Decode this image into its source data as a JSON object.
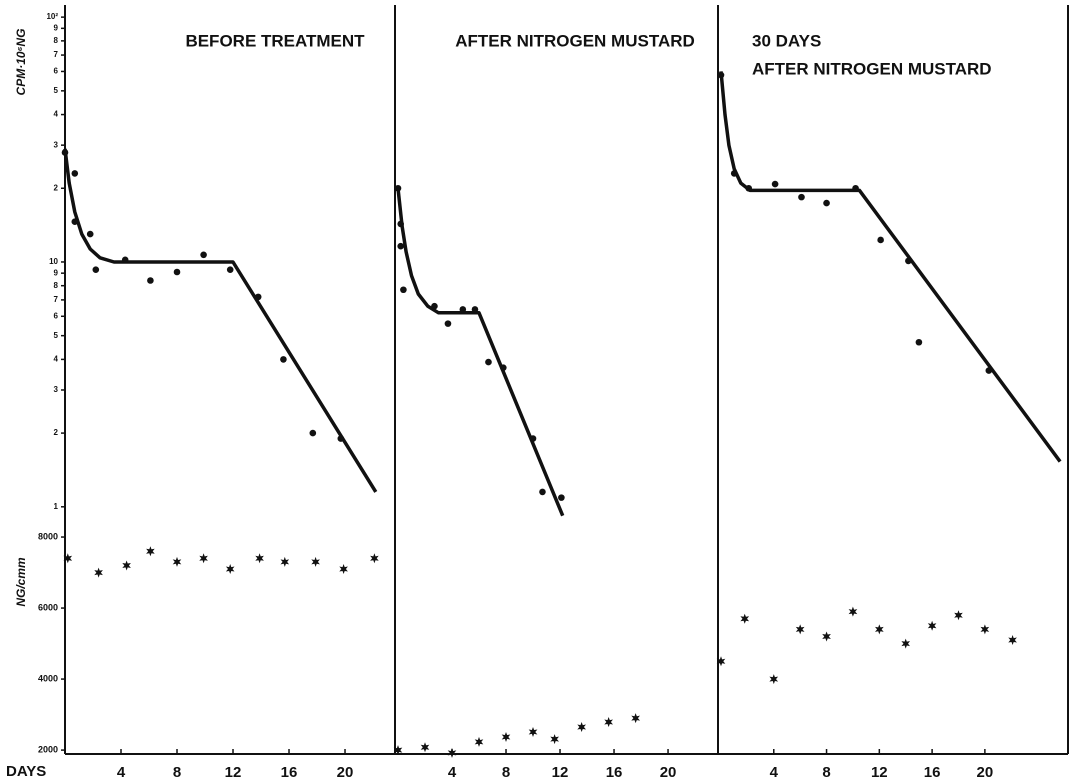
{
  "chart_data": [
    {
      "type": "scatter",
      "title": "BEFORE TREATMENT",
      "y_label": "CPM·10⁶NG",
      "log_y": true,
      "color": "#111",
      "x": [
        0,
        0.7,
        0.7,
        1.8,
        2.2,
        4.3,
        6.1,
        8,
        9.9,
        11.8,
        13.8,
        15.6,
        17.7,
        19.7
      ],
      "values": [
        28,
        23,
        14.6,
        13,
        9.3,
        10.2,
        8.4,
        9.1,
        10.7,
        9.3,
        7.2,
        4.0,
        2.0,
        1.9
      ],
      "fit": {
        "x": [
          0,
          0.3,
          0.7,
          1.2,
          1.8,
          2.5,
          3.5,
          12,
          22.2
        ],
        "values": [
          29,
          21,
          16,
          13,
          11.3,
          10.4,
          10,
          10,
          1.15
        ]
      },
      "xlim": [
        0,
        23.57
      ],
      "ylim": [
        0.9,
        110
      ],
      "yticks": [
        1,
        2,
        3,
        4,
        5,
        6,
        7,
        8,
        9,
        10,
        {
          "value": 20,
          "label": "2"
        },
        {
          "value": 30,
          "label": "3"
        },
        {
          "value": 40,
          "label": "4"
        },
        {
          "value": 50,
          "label": "5"
        },
        {
          "value": 60,
          "label": "6"
        },
        {
          "value": 70,
          "label": "7"
        },
        {
          "value": 80,
          "label": "8"
        },
        {
          "value": 90,
          "label": "9"
        },
        {
          "value": 100,
          "label": "10²"
        }
      ]
    },
    {
      "type": "scatter",
      "title": "AFTER NITROGEN MUSTARD",
      "log_y": true,
      "color": "#111",
      "x": [
        0,
        0.2,
        0.2,
        0.4,
        2.7,
        3.7,
        4.8,
        5.7,
        6.7,
        7.8,
        10,
        10.7,
        12.1
      ],
      "values": [
        20,
        14.3,
        11.6,
        7.7,
        6.6,
        5.6,
        6.4,
        6.4,
        3.9,
        3.7,
        1.9,
        1.15,
        1.09
      ],
      "fit": {
        "x": [
          0,
          0.3,
          0.6,
          1,
          1.5,
          2.2,
          3,
          6,
          12.2
        ],
        "values": [
          20,
          14,
          11,
          8.8,
          7.4,
          6.6,
          6.2,
          6.2,
          0.92
        ]
      },
      "xlim": [
        0,
        23.7
      ],
      "ylim": [
        0.9,
        110
      ]
    },
    {
      "type": "scatter",
      "title": "30 DAYS",
      "subtitle": "AFTER NITROGEN MUSTARD",
      "log_y": true,
      "color": "#111",
      "x": [
        0,
        1,
        2.1,
        4.1,
        6.1,
        8,
        10.2,
        12.1,
        14.2,
        15,
        20.3
      ],
      "values": [
        58,
        23,
        20,
        20.8,
        18.4,
        17.4,
        20,
        12.3,
        10.1,
        4.7,
        3.6
      ],
      "fit": {
        "x": [
          0,
          0.3,
          0.6,
          1,
          1.5,
          2.2,
          10.5,
          25.7
        ],
        "values": [
          60,
          40,
          30,
          24,
          21,
          19.6,
          19.6,
          1.53
        ]
      },
      "xlim": [
        0,
        26.3
      ],
      "ylim": [
        0.9,
        110
      ]
    },
    {
      "type": "scatter",
      "y_label": "NG/cmm",
      "x_label": "DAYS",
      "color": "#111",
      "x": [
        0.2,
        2.4,
        4.4,
        6.1,
        8,
        9.9,
        11.8,
        13.9,
        15.7,
        17.9,
        19.9,
        22.1
      ],
      "values": [
        7400,
        7000,
        7200,
        7600,
        7300,
        7400,
        7100,
        7400,
        7300,
        7300,
        7100,
        7400
      ],
      "xlim": [
        0,
        23.57
      ],
      "ylim": [
        1890,
        8480
      ],
      "yticks": [
        2000,
        4000,
        6000,
        8000
      ],
      "xticks": [
        4,
        8,
        12,
        16,
        20
      ]
    },
    {
      "type": "scatter",
      "color": "#111",
      "x": [
        0,
        2,
        4,
        6,
        8,
        10,
        11.6,
        13.6,
        15.6,
        17.6
      ],
      "values": [
        2000,
        2080,
        1920,
        2230,
        2370,
        2510,
        2310,
        2650,
        2790,
        2900
      ],
      "xlim": [
        0,
        23.7
      ],
      "ylim": [
        1890,
        8480
      ],
      "xticks": [
        4,
        8,
        12,
        16,
        20
      ]
    },
    {
      "type": "scatter",
      "color": "#111",
      "x": [
        0,
        1.8,
        4,
        6,
        8,
        10,
        12,
        14,
        16,
        18,
        20,
        22.1
      ],
      "values": [
        4500,
        5700,
        4000,
        5400,
        5200,
        5900,
        5400,
        5000,
        5500,
        5800,
        5400,
        5100
      ],
      "xlim": [
        0,
        26.3
      ],
      "ylim": [
        1890,
        8480
      ],
      "xticks": [
        4,
        8,
        12,
        16,
        20
      ]
    }
  ]
}
